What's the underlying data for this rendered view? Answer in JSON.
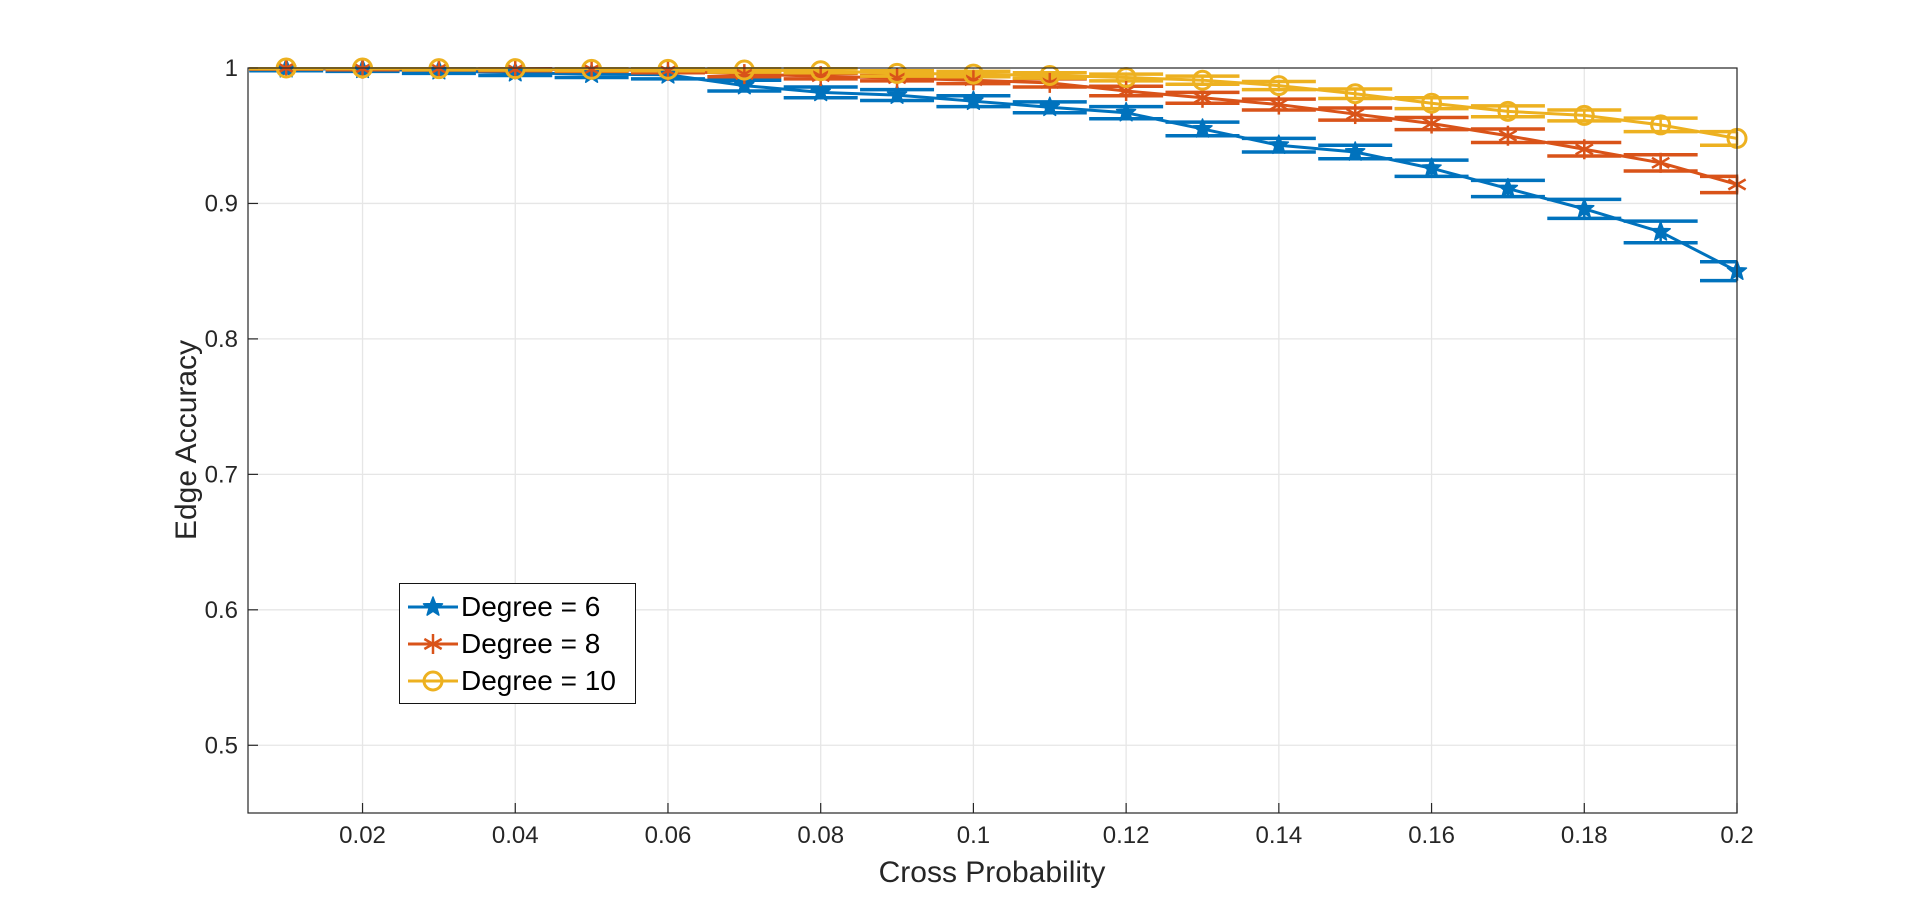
{
  "chart_data": {
    "type": "line",
    "title": "",
    "xlabel": "Cross Probability",
    "ylabel": "Edge Accuracy",
    "xlim": [
      0.005,
      0.2
    ],
    "ylim": [
      0.45,
      1.0
    ],
    "xticks": [
      0.02,
      0.04,
      0.06,
      0.08,
      0.1,
      0.12,
      0.14,
      0.16,
      0.18,
      0.2
    ],
    "xtick_labels": [
      "0.02",
      "0.04",
      "0.06",
      "0.08",
      "0.1",
      "0.12",
      "0.14",
      "0.16",
      "0.18",
      "0.2"
    ],
    "yticks": [
      0.5,
      0.6,
      0.7,
      0.8,
      0.9,
      1
    ],
    "ytick_labels": [
      "0.5",
      "0.6",
      "0.7",
      "0.8",
      "0.9",
      "1"
    ],
    "grid": true,
    "legend_location": "southwest-inside",
    "error_bars": "vertical-with-wide-caps",
    "x": [
      0.01,
      0.02,
      0.03,
      0.04,
      0.05,
      0.06,
      0.07,
      0.08,
      0.09,
      0.1,
      0.11,
      0.12,
      0.13,
      0.14,
      0.15,
      0.16,
      0.17,
      0.18,
      0.19,
      0.2
    ],
    "series": [
      {
        "name": "Degree = 6",
        "marker": "pentagram",
        "color": "#0072BD",
        "values": [
          0.9995,
          0.999,
          0.998,
          0.9965,
          0.9955,
          0.995,
          0.987,
          0.982,
          0.98,
          0.9755,
          0.971,
          0.967,
          0.955,
          0.943,
          0.938,
          0.926,
          0.911,
          0.896,
          0.879,
          0.85
        ],
        "errors": [
          0.0015,
          0.0015,
          0.002,
          0.002,
          0.0025,
          0.003,
          0.004,
          0.004,
          0.004,
          0.004,
          0.004,
          0.0045,
          0.005,
          0.005,
          0.005,
          0.006,
          0.006,
          0.007,
          0.008,
          0.007
        ]
      },
      {
        "name": "Degree = 8",
        "marker": "asterisk",
        "color": "#D95319",
        "values": [
          1,
          0.9995,
          0.9995,
          0.999,
          0.999,
          0.998,
          0.9955,
          0.994,
          0.9925,
          0.991,
          0.989,
          0.983,
          0.978,
          0.973,
          0.966,
          0.959,
          0.95,
          0.94,
          0.93,
          0.914
        ],
        "errors": [
          0.0008,
          0.0008,
          0.001,
          0.001,
          0.0015,
          0.0015,
          0.002,
          0.002,
          0.002,
          0.0025,
          0.003,
          0.0035,
          0.004,
          0.004,
          0.0045,
          0.0045,
          0.005,
          0.005,
          0.006,
          0.006
        ]
      },
      {
        "name": "Degree = 10",
        "marker": "circle",
        "color": "#EDB120",
        "values": [
          1,
          1,
          0.9995,
          0.9995,
          0.999,
          0.999,
          0.9985,
          0.998,
          0.996,
          0.9955,
          0.9945,
          0.993,
          0.991,
          0.987,
          0.981,
          0.974,
          0.968,
          0.965,
          0.958,
          0.948
        ],
        "errors": [
          0.0005,
          0.0005,
          0.0008,
          0.001,
          0.001,
          0.001,
          0.0015,
          0.0015,
          0.002,
          0.002,
          0.002,
          0.0025,
          0.003,
          0.003,
          0.0035,
          0.004,
          0.004,
          0.004,
          0.005,
          0.005
        ]
      }
    ]
  },
  "colors": {
    "background": "#ffffff",
    "grid": "#e6e6e6",
    "axis": "#262626",
    "tick_label": "#262626",
    "legend_border": "#141414"
  }
}
